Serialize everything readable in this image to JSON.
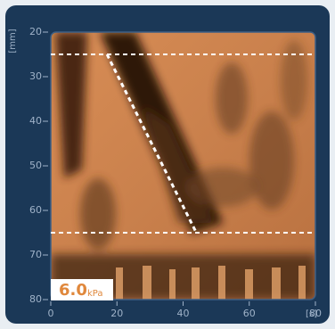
{
  "chart_data": {
    "type": "elastography",
    "ylabel": "[mm]",
    "xlabel": "[s]",
    "xlim": [
      0,
      80
    ],
    "xticks": [
      0,
      20,
      40,
      60,
      80
    ],
    "ylim": [
      20,
      80
    ],
    "yticks": [
      20,
      30,
      40,
      50,
      60,
      70,
      80
    ],
    "hlines": [
      25,
      65
    ],
    "slope_line": {
      "x": [
        17,
        44
      ],
      "y": [
        25,
        65
      ]
    },
    "stiffness": {
      "value": "6.0",
      "unit": "kPa"
    }
  }
}
